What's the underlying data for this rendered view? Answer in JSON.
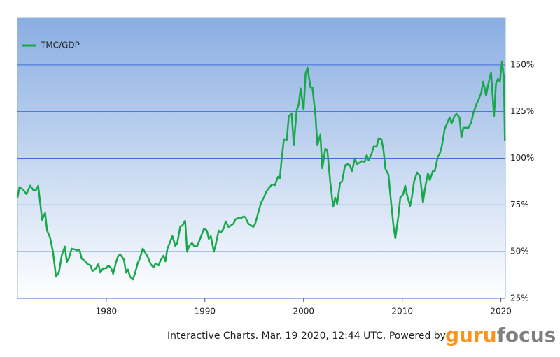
{
  "chart_data": {
    "type": "line",
    "series": [
      {
        "name": "TMC/GDP",
        "color": "#18a84a",
        "values": [
          78.9,
          84.5,
          83,
          80.8,
          85.3,
          83,
          83,
          85.3,
          67,
          70.7,
          61.3,
          57.6,
          50,
          36.6,
          38.8,
          48.2,
          52.7,
          44.5,
          46.3,
          51.6,
          51.2,
          50.8,
          50.8,
          46.3,
          45.2,
          43.3,
          42.6,
          39.6,
          40.7,
          43.3,
          38.8,
          41.1,
          41.1,
          42.6,
          41.1,
          38.1,
          44.5,
          47.5,
          48.6,
          47.1,
          45.6,
          38.8,
          40.4,
          36.6,
          35.1,
          38.1,
          44.1,
          46.3,
          51.6,
          50,
          47.1,
          43.3,
          41.5,
          43.7,
          42.6,
          45.2,
          47.8,
          44.8,
          51.6,
          55.7,
          58.3,
          53,
          54.6,
          63.5,
          63.9,
          66.5,
          50,
          53,
          54.6,
          53,
          52.7,
          55.3,
          59.4,
          62.4,
          61.3,
          56.8,
          58.3,
          50,
          53.8,
          61.3,
          60.2,
          62.4,
          66.2,
          63.2,
          63.9,
          65,
          67.3,
          68,
          67.7,
          68.8,
          68.4,
          65,
          64.3,
          63.2,
          65,
          70.7,
          76.3,
          79.3,
          81.9,
          84.1,
          86,
          85.6,
          90.1,
          89.4,
          100.6,
          110,
          109.6,
          122.7,
          123.8,
          107,
          125.7,
          128.7,
          137.3,
          126,
          145.5,
          148.5,
          138,
          137.7,
          123.1,
          107,
          112.6,
          94.6,
          105.1,
          104.4,
          87.5,
          74,
          78.9,
          75.5,
          86.8,
          87.5,
          96.1,
          96.9,
          96.1,
          93.1,
          99.9,
          96.9,
          97.6,
          98.4,
          98,
          101.7,
          98.7,
          102.5,
          106.2,
          106.2,
          110.7,
          110,
          104.4,
          94.3,
          91.2,
          80,
          64.3,
          57.2,
          68.8,
          78.9,
          80.8,
          85.3,
          80,
          74.4,
          80,
          87.5,
          92.4,
          90.5,
          76.3,
          83.8,
          92,
          88.3,
          93.1,
          93.1,
          100.6,
          102.5,
          106.2,
          115.6,
          119.3,
          121.9,
          118.6,
          122.7,
          123.8,
          121.9,
          111.1,
          116.3,
          116.3,
          116.3,
          119.3,
          124.2,
          128.7,
          130.9,
          135.1,
          141,
          133.5,
          139.2,
          145.9,
          122.3,
          139.9,
          142.5,
          141,
          151.5,
          143.7,
          109.2
        ]
      }
    ],
    "x": [
      1971.0,
      1971.2,
      1971.6,
      1971.9,
      1972.3,
      1972.6,
      1972.9,
      1973.1,
      1973.5,
      1973.8,
      1974.0,
      1974.3,
      1974.6,
      1974.9,
      1975.2,
      1975.5,
      1975.8,
      1976.0,
      1976.2,
      1976.5,
      1976.8,
      1977.0,
      1977.3,
      1977.5,
      1977.8,
      1978.1,
      1978.4,
      1978.6,
      1978.9,
      1979.2,
      1979.4,
      1979.7,
      1980.0,
      1980.2,
      1980.5,
      1980.7,
      1981.0,
      1981.2,
      1981.4,
      1981.6,
      1981.8,
      1982.0,
      1982.2,
      1982.4,
      1982.7,
      1982.9,
      1983.2,
      1983.4,
      1983.7,
      1983.9,
      1984.2,
      1984.5,
      1984.8,
      1985.0,
      1985.3,
      1985.5,
      1985.8,
      1986.0,
      1986.2,
      1986.5,
      1986.7,
      1987.0,
      1987.2,
      1987.5,
      1987.7,
      1988.0,
      1988.2,
      1988.4,
      1988.7,
      1988.9,
      1989.2,
      1989.4,
      1989.7,
      1989.9,
      1990.2,
      1990.4,
      1990.6,
      1990.9,
      1991.1,
      1991.4,
      1991.6,
      1991.9,
      1992.1,
      1992.4,
      1992.6,
      1992.9,
      1993.1,
      1993.4,
      1993.6,
      1993.9,
      1994.1,
      1994.4,
      1994.6,
      1994.9,
      1995.1,
      1995.4,
      1995.7,
      1996.0,
      1996.2,
      1996.5,
      1996.8,
      1997.1,
      1997.4,
      1997.6,
      1997.8,
      1998.0,
      1998.3,
      1998.5,
      1998.8,
      1999.0,
      1999.3,
      1999.5,
      1999.7,
      2000.0,
      2000.2,
      2000.4,
      2000.7,
      2000.9,
      2001.2,
      2001.4,
      2001.7,
      2001.9,
      2002.2,
      2002.4,
      2002.7,
      2003.0,
      2003.2,
      2003.4,
      2003.7,
      2003.9,
      2004.2,
      2004.5,
      2004.7,
      2004.9,
      2005.2,
      2005.4,
      2005.7,
      2005.9,
      2006.2,
      2006.4,
      2006.6,
      2006.9,
      2007.1,
      2007.4,
      2007.6,
      2007.9,
      2008.1,
      2008.3,
      2008.6,
      2008.8,
      2009.1,
      2009.3,
      2009.6,
      2009.8,
      2010.1,
      2010.3,
      2010.5,
      2010.8,
      2011.0,
      2011.2,
      2011.5,
      2011.8,
      2012.1,
      2012.3,
      2012.6,
      2012.8,
      2013.1,
      2013.3,
      2013.6,
      2013.8,
      2014.0,
      2014.3,
      2014.6,
      2014.8,
      2015.0,
      2015.3,
      2015.5,
      2015.8,
      2016.0,
      2016.2,
      2016.5,
      2016.7,
      2017.0,
      2017.2,
      2017.5,
      2017.7,
      2018.0,
      2018.2,
      2018.5,
      2018.7,
      2019.0,
      2019.3,
      2019.5,
      2019.7,
      2019.9,
      2020.1,
      2020.3,
      2020.4
    ],
    "xlim": [
      1971,
      2020.45
    ],
    "xticks": [
      1980,
      1990,
      2000,
      2010,
      2020
    ],
    "ylim": [
      25,
      175
    ],
    "yticks": [
      {
        "value": 25,
        "label": "25%"
      },
      {
        "value": 50,
        "label": "50%"
      },
      {
        "value": 75,
        "label": "75%"
      },
      {
        "value": 100,
        "label": "100%"
      },
      {
        "value": 125,
        "label": "125%"
      },
      {
        "value": 150,
        "label": "150%"
      }
    ],
    "grid": true,
    "legend": "top-left"
  },
  "footer": "Interactive Charts. Mar. 19 2020, 12:44 UTC. Powered by",
  "brand": {
    "first": "guru",
    "second": "focus"
  }
}
